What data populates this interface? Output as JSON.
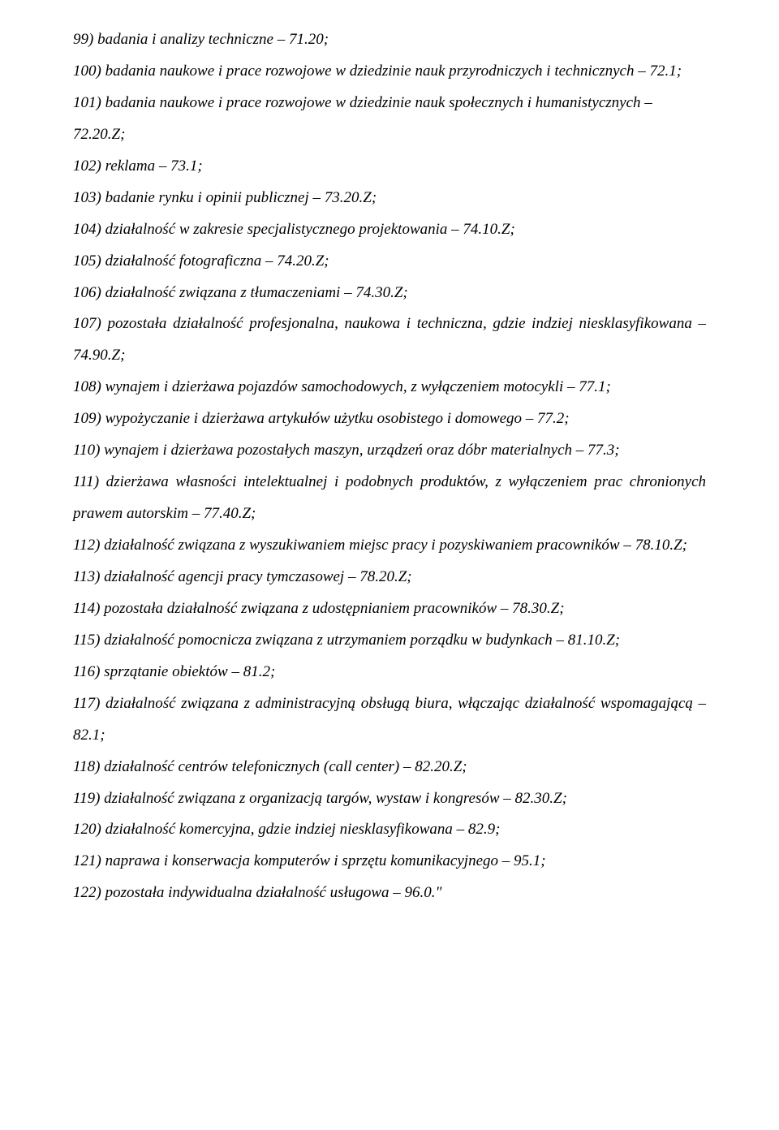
{
  "items": [
    {
      "n": "99",
      "text": "badania i analizy techniczne – 71.20;",
      "just": false
    },
    {
      "n": "100",
      "text": "badania naukowe i prace rozwojowe w dziedzinie nauk przyrodniczych i technicznych – 72.1;",
      "just": false
    },
    {
      "n": "101",
      "text": "badania naukowe i prace rozwojowe w dziedzinie nauk społecznych i humanistycznych – 72.20.Z;",
      "just": false
    },
    {
      "n": "102",
      "text": "reklama – 73.1;",
      "just": false
    },
    {
      "n": "103",
      "text": "badanie rynku i opinii publicznej – 73.20.Z;",
      "just": false
    },
    {
      "n": "104",
      "text": "działalność w zakresie specjalistycznego projektowania – 74.10.Z;",
      "just": false
    },
    {
      "n": "105",
      "text": "działalność fotograficzna – 74.20.Z;",
      "just": false
    },
    {
      "n": "106",
      "text": "działalność związana z tłumaczeniami – 74.30.Z;",
      "just": false
    },
    {
      "n": "107",
      "text": "pozostała działalność profesjonalna, naukowa i techniczna, gdzie indziej niesklasyfikowana – 74.90.Z;",
      "just": true
    },
    {
      "n": "108",
      "text": "wynajem i dzierżawa pojazdów samochodowych, z wyłączeniem motocykli – 77.1;",
      "just": false
    },
    {
      "n": "109",
      "text": "wypożyczanie i dzierżawa artykułów użytku osobistego i domowego – 77.2;",
      "just": false
    },
    {
      "n": "110",
      "text": "wynajem i dzierżawa pozostałych maszyn, urządzeń oraz dóbr materialnych – 77.3;",
      "just": false
    },
    {
      "n": "111",
      "text": "dzierżawa własności intelektualnej i podobnych produktów, z wyłączeniem prac chronionych prawem autorskim – 77.40.Z;",
      "just": true
    },
    {
      "n": "112",
      "text": "działalność związana z wyszukiwaniem miejsc pracy i pozyskiwaniem pracowników – 78.10.Z;",
      "just": true
    },
    {
      "n": "113",
      "text": "działalność agencji pracy tymczasowej – 78.20.Z;",
      "just": false
    },
    {
      "n": "114",
      "text": "pozostała działalność związana z udostępnianiem pracowników – 78.30.Z;",
      "just": false
    },
    {
      "n": "115",
      "text": "działalność pomocnicza związana z utrzymaniem porządku w budynkach – 81.10.Z;",
      "just": false
    },
    {
      "n": "116",
      "text": "sprzątanie obiektów – 81.2;",
      "just": false
    },
    {
      "n": "117",
      "text": "działalność związana z administracyjną obsługą biura, włączając działalność wspomagającą – 82.1;",
      "just": true
    },
    {
      "n": "118",
      "text": "działalność centrów telefonicznych (call center) – 82.20.Z;",
      "just": false
    },
    {
      "n": "119",
      "text": "działalność związana z organizacją targów, wystaw i kongresów – 82.30.Z;",
      "just": false
    },
    {
      "n": "120",
      "text": "działalność komercyjna, gdzie indziej niesklasyfikowana – 82.9;",
      "just": false
    },
    {
      "n": "121",
      "text": "naprawa i konserwacja komputerów i sprzętu komunikacyjnego – 95.1;",
      "just": false
    },
    {
      "n": "122",
      "text": "pozostała indywidualna działalność usługowa – 96.0.\"",
      "just": false
    }
  ]
}
